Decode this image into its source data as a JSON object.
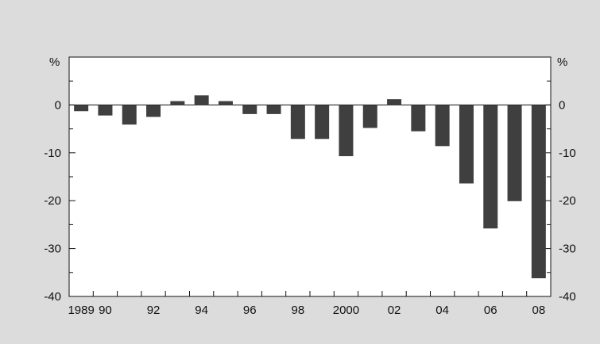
{
  "chart_data": {
    "type": "bar",
    "categories": [
      "1989",
      "1990",
      "1991",
      "1992",
      "1993",
      "1994",
      "1995",
      "1996",
      "1997",
      "1998",
      "1999",
      "2000",
      "2001",
      "2002",
      "2003",
      "2004",
      "2005",
      "2006",
      "2007",
      "2008"
    ],
    "values": [
      -1.3,
      -2.2,
      -4.1,
      -2.5,
      0.8,
      2.0,
      0.8,
      -1.9,
      -1.9,
      -7.1,
      -7.1,
      -10.7,
      -4.8,
      1.2,
      -5.5,
      -8.6,
      -16.4,
      -25.8,
      -20.1,
      -36.2
    ],
    "xtick_labels": [
      "1989",
      "90",
      "",
      "92",
      "",
      "94",
      "",
      "96",
      "",
      "98",
      "",
      "2000",
      "",
      "02",
      "",
      "04",
      "",
      "06",
      "",
      "08"
    ],
    "ylim": [
      -40,
      10
    ],
    "yticks": [
      0,
      -10,
      -20,
      -30,
      -40
    ],
    "ytick_labels": [
      "0",
      "-10",
      "-20",
      "-30",
      "-40"
    ],
    "yunit_left": "%",
    "yunit_right": "%",
    "title": "",
    "xlabel": "",
    "ylabel": "",
    "grid": false,
    "colors": {
      "bar": "#3f3f3f",
      "panel": "#dcdcdc",
      "plot": "#ffffff",
      "axis": "#111111"
    }
  }
}
